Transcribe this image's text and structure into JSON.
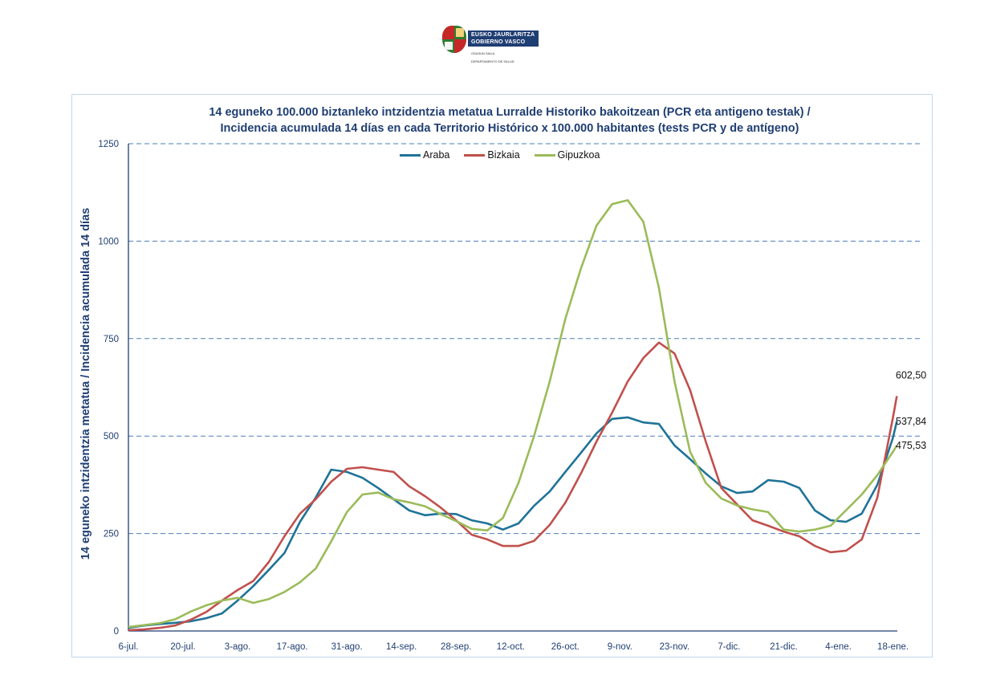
{
  "header": {
    "logo_line1": "EUSKO JAURLARITZA",
    "logo_line2": "GOBIERNO VASCO",
    "logo_sub1": "OSASUN SAILA",
    "logo_sub2": "DEPARTAMENTO DE SALUD"
  },
  "chart_data": {
    "type": "line",
    "title": "14 eguneko 100.000 biztanleko intzidentzia metatua Lurralde Historiko bakoitzean (PCR eta antigeno  testak) /",
    "subtitle": "Incidencia  acumulada  14 días en cada Territorio Histórico x 100.000 habitantes (tests PCR y de antígeno)",
    "ylabel": "14 eguneko intzidentzia metatua / Incidencia  acumulada  14 días",
    "xlabel": "",
    "ylim": [
      0,
      1250
    ],
    "yticks": [
      0,
      250,
      500,
      750,
      1000,
      1250
    ],
    "xticks": [
      "6-jul.",
      "20-jul.",
      "3-ago.",
      "17-ago.",
      "31-ago.",
      "14-sep.",
      "28-sep.",
      "12-oct.",
      "26-oct.",
      "9-nov.",
      "23-nov.",
      "7-dic.",
      "21-dic.",
      "4-ene.",
      "18-ene."
    ],
    "xtick_step_days": 14,
    "x_days": [
      0,
      4,
      8,
      12,
      16,
      20,
      24,
      28,
      32,
      36,
      40,
      44,
      48,
      52,
      56,
      60,
      64,
      68,
      72,
      76,
      80,
      84,
      88,
      92,
      96,
      100,
      104,
      108,
      112,
      116,
      120,
      124,
      128,
      132,
      136,
      140,
      144,
      148,
      152,
      156,
      160,
      164,
      168,
      172,
      176,
      180,
      184,
      188,
      192,
      196,
      197
    ],
    "grid": "horizontal-dashed",
    "legend_position": "top-center",
    "series": [
      {
        "name": "Araba",
        "color": "#1f7398",
        "values": [
          8,
          14,
          18,
          21,
          25,
          33,
          45,
          78,
          115,
          157,
          200,
          280,
          342,
          414,
          408,
          393,
          367,
          338,
          309,
          297,
          301,
          300,
          284,
          276,
          260,
          276,
          321,
          358,
          408,
          457,
          507,
          544,
          548,
          535,
          531,
          476,
          441,
          404,
          371,
          354,
          358,
          387,
          383,
          367,
          309,
          284,
          280,
          301,
          375,
          496,
          537.84
        ],
        "end_label": "537,84"
      },
      {
        "name": "Bizkaia",
        "color": "#c0504d",
        "values": [
          2,
          4,
          8,
          14,
          29,
          49,
          78,
          105,
          128,
          177,
          243,
          301,
          338,
          383,
          416,
          420,
          414,
          408,
          371,
          346,
          317,
          284,
          247,
          235,
          218,
          218,
          231,
          272,
          329,
          404,
          486,
          560,
          640,
          700,
          740,
          712,
          618,
          486,
          367,
          325,
          284,
          270,
          255,
          243,
          218,
          202,
          206,
          235,
          342,
          548,
          602.5
        ],
        "end_label": "602,50"
      },
      {
        "name": "Gipuzkoa",
        "color": "#9bbb59",
        "values": [
          10,
          15,
          20,
          30,
          50,
          66,
          78,
          85,
          72,
          82,
          100,
          125,
          160,
          230,
          305,
          350,
          355,
          338,
          330,
          320,
          300,
          282,
          262,
          258,
          290,
          380,
          500,
          640,
          800,
          930,
          1040,
          1095,
          1105,
          1050,
          880,
          640,
          460,
          380,
          340,
          322,
          312,
          305,
          260,
          255,
          260,
          270,
          310,
          350,
          400,
          460,
          475.53
        ],
        "end_label": "475,53"
      }
    ]
  }
}
